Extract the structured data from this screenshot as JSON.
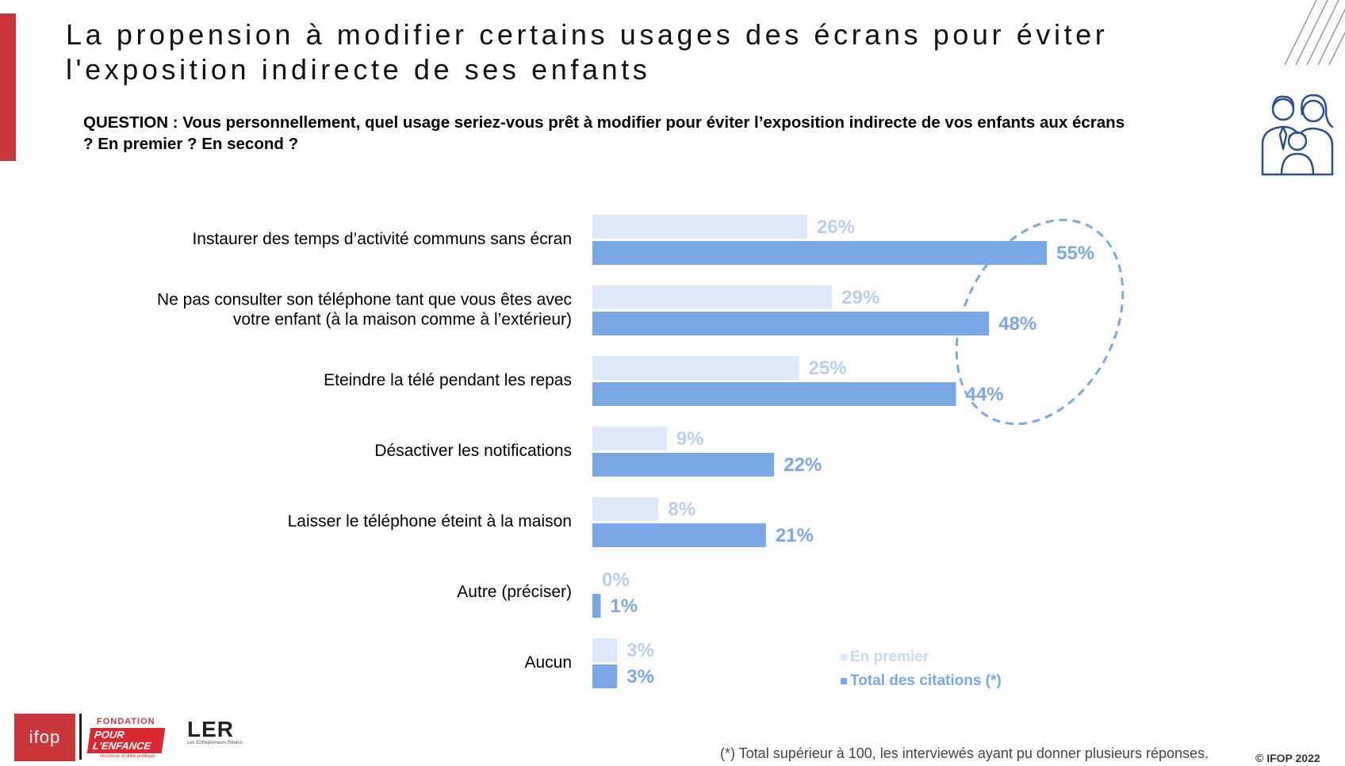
{
  "header": {
    "title_lines": [
      "La propension à modifier certains usages des écrans pour éviter",
      "l'exposition indirecte de ses enfants"
    ],
    "question_lines": [
      "QUESTION : Vous personnellement, quel usage seriez-vous prêt à modifier pour éviter l’exposition indirecte de vos enfants aux écrans",
      "? En premier ? En second ?"
    ]
  },
  "chart_data": {
    "type": "bar",
    "orientation": "horizontal",
    "categories": [
      "Instaurer des temps d’activité communs sans écran",
      "Ne pas consulter son téléphone tant que vous êtes avec votre enfant (à la maison comme à l’extérieur)",
      "Eteindre la télé pendant les repas",
      "Désactiver les notifications",
      "Laisser le téléphone éteint à la maison",
      "Autre (préciser)",
      "Aucun"
    ],
    "category_lines": [
      [
        "Instaurer des temps d’activité communs sans écran"
      ],
      [
        "Ne pas consulter son téléphone tant que vous êtes avec",
        "votre enfant (à la maison comme à l’extérieur)"
      ],
      [
        "Eteindre la télé pendant les repas"
      ],
      [
        "Désactiver les notifications"
      ],
      [
        "Laisser le téléphone éteint à la maison"
      ],
      [
        "Autre (préciser)"
      ],
      [
        "Aucun"
      ]
    ],
    "series": [
      {
        "name": "En premier",
        "values": [
          26,
          29,
          25,
          9,
          8,
          0,
          3
        ],
        "labels": [
          "26%",
          "29%",
          "25%",
          "9%",
          "8%",
          "0%",
          "3%"
        ],
        "color": "#dde8f8",
        "label_color": "#b9cdef"
      },
      {
        "name": "Total des citations (*)",
        "values": [
          55,
          48,
          44,
          22,
          21,
          1,
          3
        ],
        "labels": [
          "55%",
          "48%",
          "44%",
          "22%",
          "21%",
          "1%",
          "3%"
        ],
        "color": "#7aa7e6",
        "label_color": "#7aa7e6"
      }
    ],
    "xlim": [
      0,
      100
    ],
    "grid": false,
    "legend_position": "bottom-right",
    "highlight": "dashed ellipse around the top three Total des citations values",
    "highlight_color": "#7aa7e6"
  },
  "footer": {
    "footnote": "(*) Total supérieur à 100, les interviewés ayant pu donner plusieurs réponses.",
    "copyright": "© IFOP 2022"
  },
  "logos": {
    "ifop": "ifop",
    "fondation_top": "FONDATION",
    "fondation_name_lines": [
      "POUR",
      "L'ENFANCE"
    ],
    "fondation_sub": "reconnue d'utilité publique",
    "ler": "LER",
    "ler_sub": "Les Entrepreneurs Réunis"
  },
  "colors": {
    "accent_red": "#c8363a",
    "icon_blue": "#2d4f8c"
  },
  "icons": {
    "family": "family-icon",
    "decoration": "diagonal-lines-icon"
  }
}
